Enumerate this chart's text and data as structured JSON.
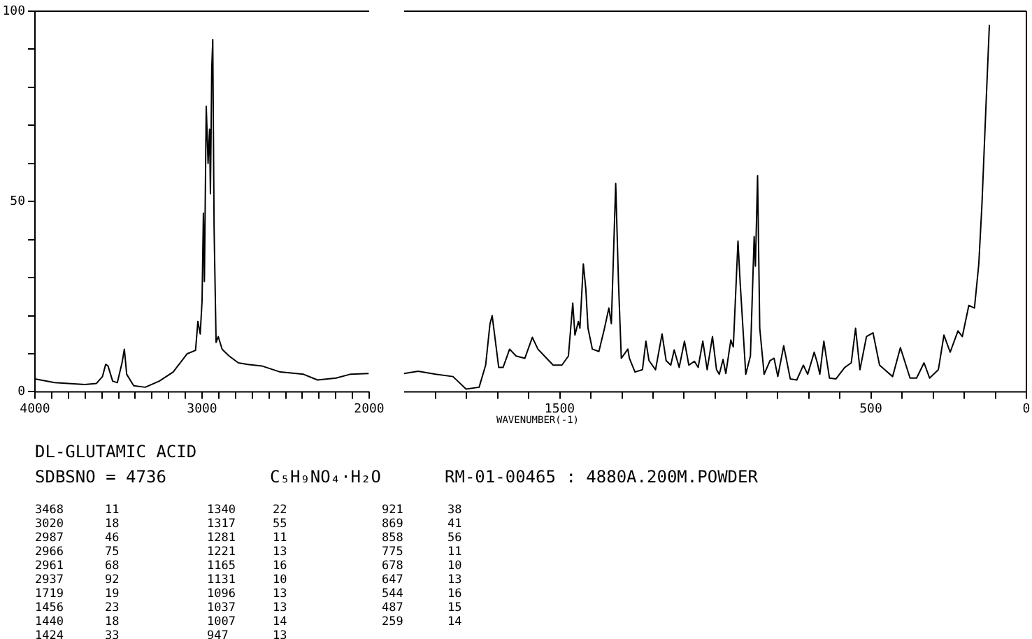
{
  "chart_data": [
    {
      "type": "line",
      "xlim": [
        4000,
        2000
      ],
      "ylim": [
        0,
        100
      ],
      "xticks": [
        {
          "value": 4000,
          "label": "4000"
        },
        {
          "value": 3900,
          "label": null
        },
        {
          "value": 3800,
          "label": null
        },
        {
          "value": 3700,
          "label": null
        },
        {
          "value": 3600,
          "label": null
        },
        {
          "value": 3500,
          "label": null
        },
        {
          "value": 3400,
          "label": null
        },
        {
          "value": 3300,
          "label": null
        },
        {
          "value": 3200,
          "label": null
        },
        {
          "value": 3100,
          "label": null
        },
        {
          "value": 3000,
          "label": "3000"
        },
        {
          "value": 2900,
          "label": null
        },
        {
          "value": 2800,
          "label": null
        },
        {
          "value": 2700,
          "label": null
        },
        {
          "value": 2600,
          "label": null
        },
        {
          "value": 2500,
          "label": null
        },
        {
          "value": 2400,
          "label": null
        },
        {
          "value": 2300,
          "label": null
        },
        {
          "value": 2200,
          "label": null
        },
        {
          "value": 2100,
          "label": null
        },
        {
          "value": 2000,
          "label": "2000"
        }
      ],
      "yticks": [
        0,
        {
          "value": 10,
          "label": null
        },
        {
          "value": 20,
          "label": null
        },
        {
          "value": 30,
          "label": null
        },
        {
          "value": 40,
          "label": null
        },
        50,
        {
          "value": 60,
          "label": null
        },
        {
          "value": 70,
          "label": null
        },
        {
          "value": 80,
          "label": null
        },
        {
          "value": 90,
          "label": null
        },
        100
      ],
      "grid": false,
      "color": "#000000",
      "x": [
        4000,
        3883,
        3702,
        3632,
        3596,
        3577,
        3563,
        3535,
        3507,
        3479,
        3465,
        3451,
        3409,
        3340,
        3256,
        3173,
        3089,
        3039,
        3025,
        3011,
        3000,
        2992,
        2986,
        2975,
        2964,
        2955,
        2950,
        2942,
        2936,
        2928,
        2916,
        2903,
        2880,
        2838,
        2783,
        2727,
        2643,
        2532,
        2393,
        2309,
        2198,
        2114,
        2003
      ],
      "values": [
        3.4,
        2.4,
        1.9,
        2.2,
        4,
        7.2,
        6.8,
        2.8,
        2.4,
        7.6,
        11.2,
        4.6,
        1.6,
        1.2,
        2.8,
        5.2,
        10,
        10.9,
        18.5,
        15.2,
        23.9,
        46.9,
        29,
        75,
        60,
        69,
        52,
        85,
        92.5,
        43,
        13,
        14.5,
        11.2,
        9.4,
        7.6,
        7.2,
        6.8,
        5.2,
        4.6,
        3.1,
        3.6,
        4.6,
        4.8
      ]
    },
    {
      "type": "line",
      "xlim": [
        2000,
        0
      ],
      "ylim": [
        0,
        100
      ],
      "tick_labels": "x",
      "xlabel": "WAVENUMBER(-1)",
      "xticks": [
        {
          "value": 1900,
          "label": null
        },
        {
          "value": 1800,
          "label": null
        },
        {
          "value": 1700,
          "label": null
        },
        {
          "value": 1600,
          "label": null
        },
        {
          "value": 1500,
          "label": "1500"
        },
        {
          "value": 1400,
          "label": null
        },
        {
          "value": 1300,
          "label": null
        },
        {
          "value": 1200,
          "label": null
        },
        {
          "value": 1100,
          "label": null
        },
        {
          "value": 1000,
          "label": null
        },
        {
          "value": 900,
          "label": null
        },
        {
          "value": 800,
          "label": null
        },
        {
          "value": 700,
          "label": null
        },
        {
          "value": 600,
          "label": null
        },
        {
          "value": 500,
          "label": "500"
        },
        {
          "value": 400,
          "label": null
        },
        {
          "value": 300,
          "label": null
        },
        {
          "value": 200,
          "label": null
        },
        {
          "value": 100,
          "label": null
        },
        {
          "value": 0,
          "label": "0"
        }
      ],
      "grid": false,
      "color": "#000000",
      "x": [
        2000,
        1955,
        1899,
        1843,
        1801,
        1759,
        1738,
        1724,
        1717,
        1710,
        1696,
        1682,
        1661,
        1640,
        1612,
        1588,
        1570,
        1549,
        1521,
        1493,
        1472,
        1458,
        1451,
        1440,
        1435,
        1424,
        1416,
        1409,
        1395,
        1374,
        1356,
        1342,
        1334,
        1320,
        1311,
        1302,
        1281,
        1276,
        1258,
        1234,
        1223,
        1213,
        1192,
        1171,
        1158,
        1143,
        1132,
        1116,
        1099,
        1085,
        1067,
        1055,
        1040,
        1026,
        1009,
        996,
        987,
        975,
        966,
        950,
        942,
        927,
        920,
        902,
        887,
        875,
        871,
        864,
        857,
        843,
        824,
        811,
        799,
        780,
        759,
        738,
        717,
        703,
        682,
        672,
        664,
        651,
        633,
        612,
        584,
        563,
        549,
        535,
        514,
        493,
        472,
        430,
        405,
        374,
        353,
        329,
        311,
        283,
        265,
        245,
        220,
        206,
        185,
        167,
        153,
        143,
        129,
        119
      ],
      "values": [
        4.8,
        5.4,
        4.6,
        4,
        0.7,
        1.2,
        7,
        17.9,
        20,
        15.5,
        6.4,
        6.4,
        11.2,
        9.4,
        8.8,
        14.3,
        11.2,
        9.4,
        7,
        7,
        9.4,
        23.3,
        14.9,
        18.5,
        16.7,
        33.6,
        27,
        16.7,
        11.2,
        10.6,
        16.7,
        22,
        17.9,
        54.7,
        28.7,
        8.8,
        11.2,
        8.8,
        5.2,
        5.8,
        13.3,
        8.2,
        5.8,
        15.2,
        8.2,
        7,
        11,
        6.4,
        13.3,
        7,
        8,
        6.4,
        13.3,
        5.8,
        14.5,
        5.8,
        4.6,
        8.5,
        4.8,
        13.6,
        11.8,
        39.6,
        28.7,
        4.6,
        9.4,
        40.8,
        33,
        56.8,
        16.7,
        4.6,
        8.2,
        8.8,
        4,
        12.1,
        3.4,
        3.1,
        7,
        4.6,
        10.4,
        7.6,
        4.6,
        13.3,
        3.6,
        3.4,
        6.4,
        7.6,
        16.7,
        5.8,
        14.5,
        15.5,
        7,
        4,
        11.6,
        3.6,
        3.6,
        7.6,
        3.6,
        5.8,
        14.9,
        10.4,
        16,
        14.5,
        22.7,
        22,
        33.6,
        49,
        77,
        96.4
      ]
    },
    {
      "type": "other",
      "title": "DL-GLUTAMIC ACID",
      "annotations": [
        "SDBSNO = 4736",
        "C₅H₉NO₄·H₂O",
        "RM-01-00465 : 4880A.200M.POWDER",
        "3468 11",
        "3020 18",
        "2987 46",
        "2966 75",
        "2961 68",
        "2937 92",
        "1719 19",
        "1456 23",
        "1440 18",
        "1424 33",
        "1340 22",
        "1317 55",
        "1281 11",
        "1221 13",
        "1165 16",
        "1131 10",
        "1096 13",
        "1037 13",
        "1007 14",
        "947 13",
        "921 38",
        "869 41",
        "858 56",
        "775 11",
        "678 10",
        "647 13",
        "544 16",
        "487 15",
        "259 14"
      ]
    }
  ]
}
